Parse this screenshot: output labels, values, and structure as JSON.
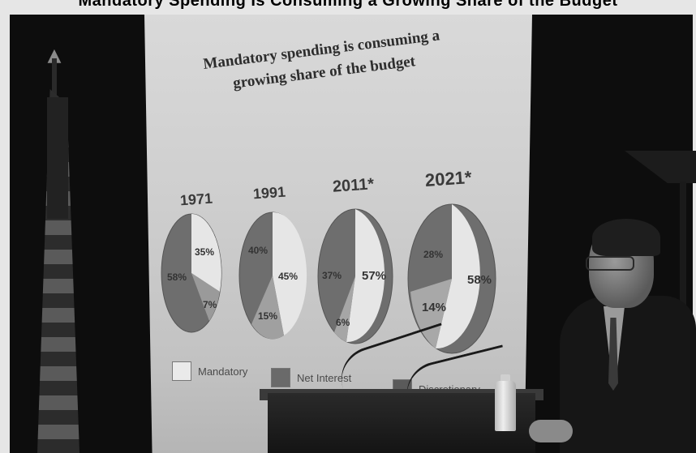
{
  "banner": {
    "text": "Mandatory Spending Is Consuming a Growing Share of the Budget"
  },
  "slide": {
    "title": "Mandatory spending is consuming a growing share of the budget",
    "years": [
      "1971",
      "1991",
      "2011*",
      "2021*"
    ],
    "pies": [
      {
        "year": "1971",
        "labels": [
          "35%",
          "58%",
          "7%"
        ]
      },
      {
        "year": "1991",
        "labels": [
          "40%",
          "45%",
          "15%"
        ]
      },
      {
        "year": "2011*",
        "labels": [
          "37%",
          "57%",
          "6%"
        ]
      },
      {
        "year": "2021*",
        "labels": [
          "28%",
          "58%",
          "14%"
        ]
      }
    ],
    "legend": {
      "mandatory": "Mandatory",
      "net_interest": "Net Interest",
      "discretionary": "Discretionary"
    },
    "colors": {
      "mandatory": "#e8e8e8",
      "net_interest": "#7a7a7a",
      "discretionary": "#5a5a5a"
    }
  }
}
